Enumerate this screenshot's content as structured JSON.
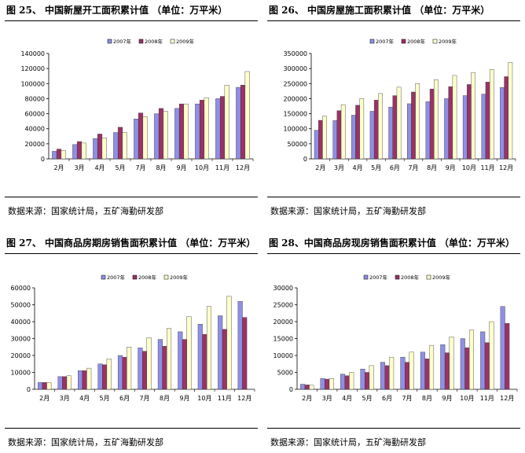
{
  "panels": [
    {
      "title": "图 25、  中国新屋开工面积累计值  （单位：万平米）",
      "source": "数据来源：国家统计局，五矿海勤研发部"
    },
    {
      "title": "图 26、  中国房屋施工面积累计值  （单位：万平米）",
      "source": "数据来源：国家统计局，五矿海勤研发部"
    },
    {
      "title": "图 27、  中国商品房期房销售面积累计值  （单位：万平米）",
      "source": "数据来源：国家统计局，五矿海勤研发部"
    },
    {
      "title": "图 28、中国商品房现房销售面积累计值  （单位：万平米）",
      "source": "数据来源：国家统计局，五矿海勤研发部"
    }
  ],
  "colors": {
    "2007": "#8f8fe6",
    "2008": "#993366",
    "2009": "#ffffcc"
  },
  "chart_data": [
    {
      "type": "bar",
      "title": "图 25、  中国新屋开工面积累计值  （单位：万平米）",
      "categories": [
        "2月",
        "3月",
        "4月",
        "5月",
        "7月",
        "8月",
        "9月",
        "10月",
        "11月",
        "12月"
      ],
      "ylim": [
        0,
        140000
      ],
      "yticks": [
        0,
        20000,
        40000,
        60000,
        80000,
        100000,
        120000,
        140000
      ],
      "legend": "top",
      "series": [
        {
          "name": "2007年",
          "values": [
            10000,
            19000,
            27000,
            35000,
            53000,
            60000,
            67000,
            73000,
            80000,
            95000
          ]
        },
        {
          "name": "2008年",
          "values": [
            13000,
            23000,
            33000,
            42000,
            61000,
            67000,
            73000,
            78000,
            83000,
            98000
          ]
        },
        {
          "name": "2009年",
          "values": [
            11000,
            21000,
            28000,
            35000,
            56000,
            63000,
            73000,
            81000,
            98000,
            116000
          ]
        }
      ]
    },
    {
      "type": "bar",
      "title": "图 26、  中国房屋施工面积累计值  （单位：万平米）",
      "categories": [
        "2月",
        "3月",
        "4月",
        "5月",
        "6月",
        "7月",
        "8月",
        "9月",
        "10月",
        "11月",
        "12月"
      ],
      "ylim": [
        0,
        350000
      ],
      "yticks": [
        0,
        50000,
        100000,
        150000,
        200000,
        250000,
        300000,
        350000
      ],
      "legend": "top",
      "series": [
        {
          "name": "2007年",
          "values": [
            95000,
            127000,
            145000,
            158000,
            172000,
            183000,
            190000,
            200000,
            210000,
            215000,
            237000
          ]
        },
        {
          "name": "2008年",
          "values": [
            128000,
            160000,
            178000,
            195000,
            210000,
            222000,
            232000,
            240000,
            247000,
            255000,
            273000
          ]
        },
        {
          "name": "2009年",
          "values": [
            142000,
            180000,
            200000,
            217000,
            238000,
            250000,
            263000,
            277000,
            287000,
            297000,
            320000
          ]
        }
      ]
    },
    {
      "type": "bar",
      "title": "图 27、  中国商品房期房销售面积累计值  （单位：万平米）",
      "categories": [
        "2月",
        "3月",
        "4月",
        "5月",
        "6月",
        "7月",
        "8月",
        "9月",
        "10月",
        "11月",
        "12月"
      ],
      "ylim": [
        0,
        60000
      ],
      "yticks": [
        0,
        10000,
        20000,
        30000,
        40000,
        50000,
        60000
      ],
      "legend": "top",
      "series": [
        {
          "name": "2007年",
          "values": [
            4000,
            7500,
            11000,
            15000,
            20000,
            24500,
            29500,
            34000,
            38500,
            43500,
            52000
          ]
        },
        {
          "name": "2008年",
          "values": [
            4000,
            7500,
            11000,
            14500,
            19000,
            22500,
            25500,
            29500,
            32500,
            35500,
            42500
          ]
        },
        {
          "name": "2009年",
          "values": [
            4000,
            8000,
            12500,
            18000,
            25000,
            30500,
            36000,
            43000,
            49000,
            55000,
            null
          ]
        }
      ]
    },
    {
      "type": "bar",
      "title": "图 28、中国商品房现房销售面积累计值  （单位：万平米）",
      "categories": [
        "2月",
        "3月",
        "4月",
        "5月",
        "6月",
        "7月",
        "8月",
        "9月",
        "10月",
        "11月",
        "12月"
      ],
      "ylim": [
        0,
        30000
      ],
      "yticks": [
        0,
        5000,
        10000,
        15000,
        20000,
        25000,
        30000
      ],
      "legend": "top",
      "series": [
        {
          "name": "2007年",
          "values": [
            1500,
            3200,
            4500,
            6000,
            8000,
            9500,
            11000,
            13200,
            15000,
            17000,
            24500
          ]
        },
        {
          "name": "2008年",
          "values": [
            1300,
            3000,
            4000,
            5000,
            7000,
            8000,
            9000,
            10800,
            12300,
            13800,
            19500
          ]
        },
        {
          "name": "2009年",
          "values": [
            1200,
            3200,
            5000,
            7000,
            9500,
            11000,
            13000,
            15500,
            17500,
            20000,
            null
          ]
        }
      ]
    }
  ]
}
